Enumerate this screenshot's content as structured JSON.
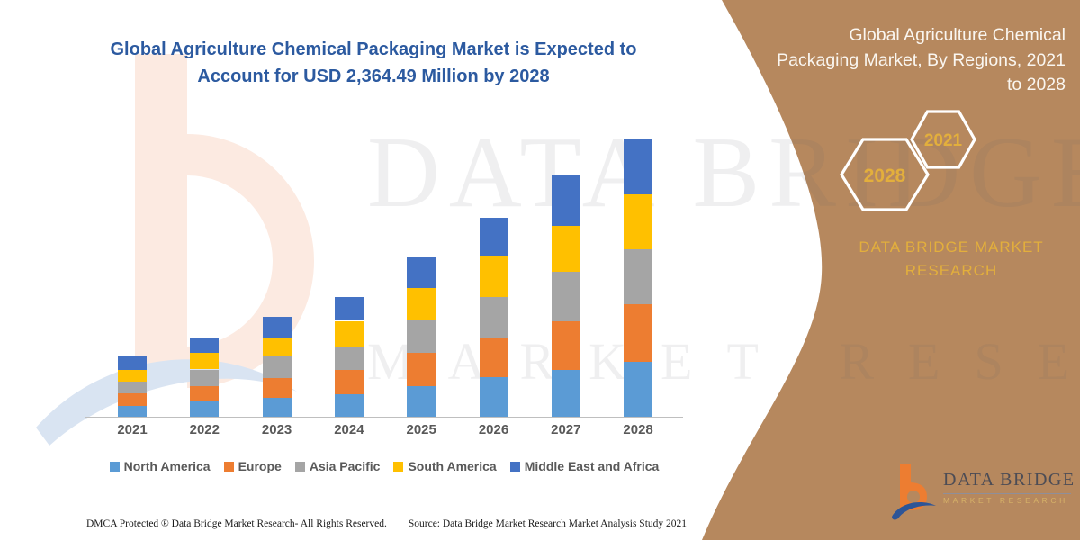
{
  "title": {
    "line1": "Global Agriculture Chemical Packaging Market is Expected to",
    "line2": "Account for USD 2,364.49 Million by 2028"
  },
  "chart_data": {
    "type": "bar",
    "stacked": true,
    "title": "Global Agriculture Chemical Packaging Market is Expected to Account for USD 2,364.49 Million by 2028",
    "unit": "USD Million",
    "categories": [
      "2021",
      "2022",
      "2023",
      "2024",
      "2025",
      "2026",
      "2027",
      "2028"
    ],
    "series": [
      {
        "name": "North America",
        "color": "#5B9BD5",
        "values": [
          95,
          128,
          161,
          192,
          263,
          337,
          401,
          468
        ]
      },
      {
        "name": "Europe",
        "color": "#ED7D31",
        "values": [
          102,
          136,
          171,
          209,
          281,
          340,
          412,
          490
        ]
      },
      {
        "name": "Asia Pacific",
        "color": "#A5A5A5",
        "values": [
          102,
          138,
          179,
          199,
          274,
          345,
          422,
          468
        ]
      },
      {
        "name": "South America",
        "color": "#FFC000",
        "values": [
          102,
          143,
          166,
          217,
          281,
          353,
          393,
          466
        ]
      },
      {
        "name": "Middle East and Africa",
        "color": "#4472C4",
        "values": [
          110,
          128,
          171,
          205,
          268,
          324,
          424,
          472.49
        ]
      }
    ],
    "highlight": {
      "category": "2028",
      "total": 2364.49
    },
    "legend_position": "bottom",
    "grid": false,
    "y_axis_visible": false
  },
  "footer": {
    "dmca": "DMCA Protected ® Data Bridge Market Research-  All Rights Reserved.",
    "source": "Source: Data Bridge Market Research  Market Analysis Study 2021"
  },
  "side_panel": {
    "title_line1": "Global Agriculture Chemical",
    "title_line2": "Packaging Market, By Regions, 2021",
    "title_line3": "to 2028",
    "hex_left_label": "2028",
    "hex_right_label": "2021",
    "brand_line1": "DATA BRIDGE MARKET",
    "brand_line2": "RESEARCH"
  },
  "logo": {
    "name": "DATA BRIDGE",
    "subtitle": "MARKET RESEARCH"
  },
  "watermark": {
    "line1": "DATA BRIDGE",
    "line2": "MARKET RESEARCH"
  },
  "colors": {
    "title_blue": "#2C5AA0",
    "panel_brown": "#B6885E",
    "gold": "#E3AF3C",
    "axis_gray": "#BFBFBF",
    "label_gray": "#595959"
  }
}
